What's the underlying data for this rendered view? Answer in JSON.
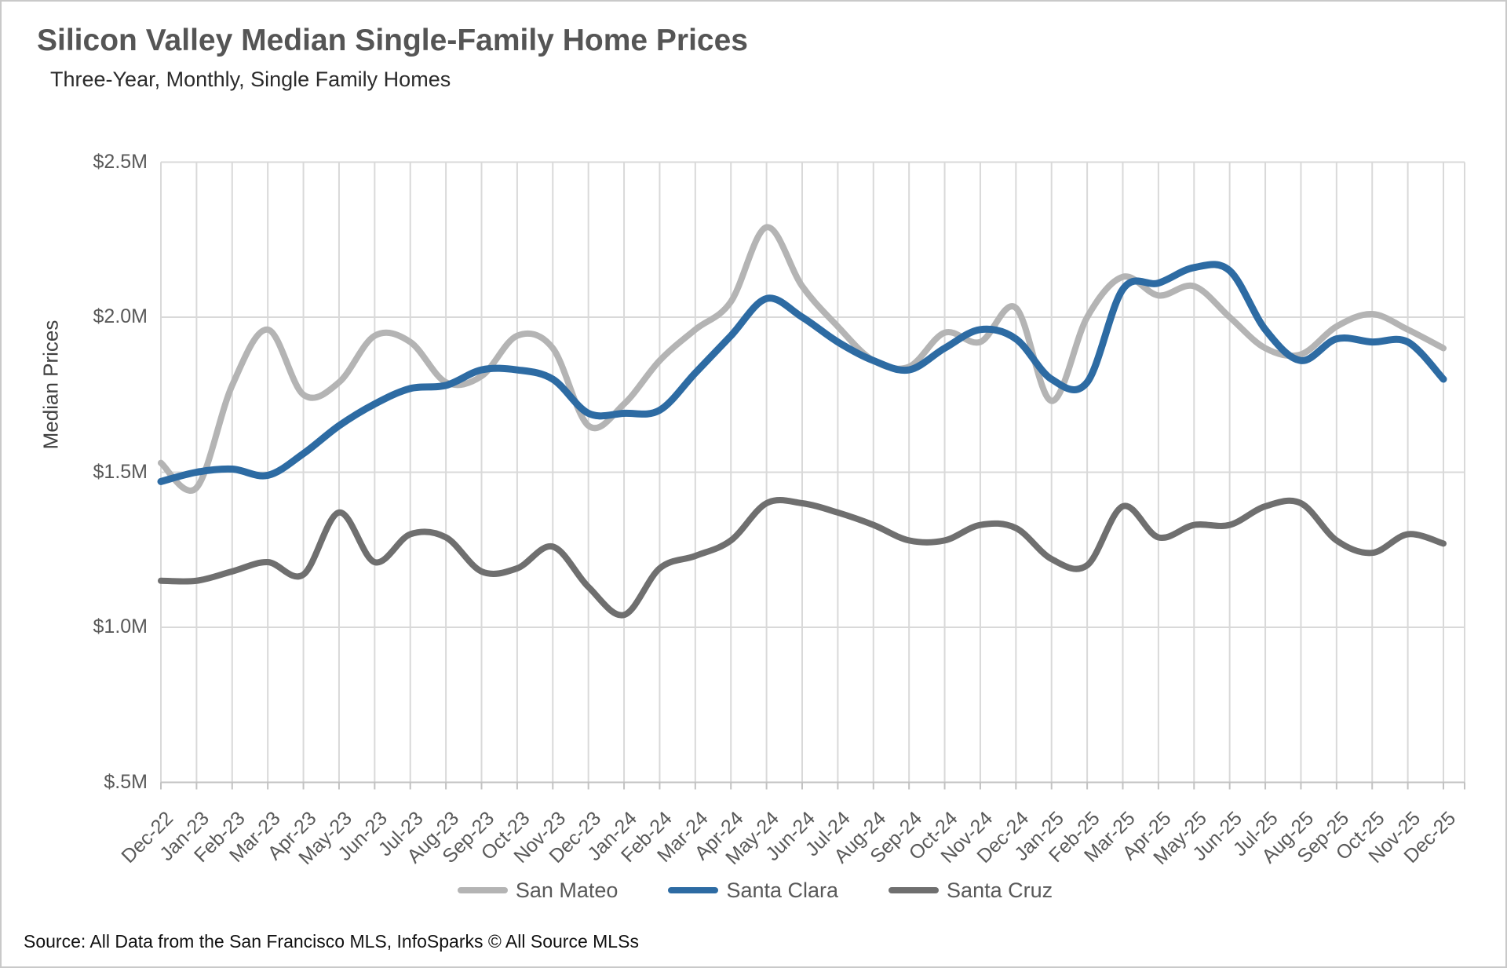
{
  "header": {
    "title": "Silicon Valley Median Single-Family Home Prices",
    "subtitle": "Three-Year, Monthly, Single Family Homes"
  },
  "chart_data": {
    "type": "line",
    "title": "Silicon Valley Median Single-Family Home Prices",
    "subtitle": "Three-Year, Monthly, Single Family Homes",
    "xlabel": "",
    "ylabel": "Median Prices",
    "ylim": [
      0.5,
      2.5
    ],
    "y_ticks": [
      2.5,
      2.0,
      1.5,
      1.0,
      0.5
    ],
    "y_tick_labels": [
      "$2.5M",
      "$2.0M",
      "$1.5M",
      "$1.0M",
      "$.5M"
    ],
    "grid": true,
    "legend_position": "bottom",
    "units": "millions USD",
    "categories": [
      "Dec-22",
      "Jan-23",
      "Feb-23",
      "Mar-23",
      "Apr-23",
      "May-23",
      "Jun-23",
      "Jul-23",
      "Aug-23",
      "Sep-23",
      "Oct-23",
      "Nov-23",
      "Dec-23",
      "Jan-24",
      "Feb-24",
      "Mar-24",
      "Apr-24",
      "May-24",
      "Jun-24",
      "Jul-24",
      "Aug-24",
      "Sep-24",
      "Oct-24",
      "Nov-24",
      "Dec-24",
      "Jan-25",
      "Feb-25",
      "Mar-25",
      "Apr-25",
      "May-25",
      "Jun-25",
      "Jul-25",
      "Aug-25",
      "Sep-25",
      "Oct-25",
      "Nov-25",
      "Dec-25"
    ],
    "series": [
      {
        "name": "San Mateo",
        "color": "#b4b4b4",
        "values": [
          1.53,
          1.45,
          1.78,
          1.96,
          1.75,
          1.79,
          1.94,
          1.92,
          1.79,
          1.81,
          1.94,
          1.9,
          1.65,
          1.72,
          1.86,
          1.96,
          2.05,
          2.29,
          2.1,
          1.97,
          1.86,
          1.84,
          1.95,
          1.92,
          2.03,
          1.73,
          2.0,
          2.13,
          2.07,
          2.1,
          2.0,
          1.9,
          1.88,
          1.97,
          2.01,
          1.96,
          1.9
        ]
      },
      {
        "name": "Santa Clara",
        "color": "#2d6ba3",
        "values": [
          1.47,
          1.5,
          1.51,
          1.49,
          1.56,
          1.65,
          1.72,
          1.77,
          1.78,
          1.83,
          1.83,
          1.8,
          1.69,
          1.69,
          1.7,
          1.82,
          1.94,
          2.06,
          2.0,
          1.92,
          1.86,
          1.83,
          1.9,
          1.96,
          1.93,
          1.8,
          1.79,
          2.09,
          2.11,
          2.16,
          2.15,
          1.96,
          1.86,
          1.93,
          1.92,
          1.92,
          1.8
        ]
      },
      {
        "name": "Santa Cruz",
        "color": "#6f6f6f",
        "values": [
          1.15,
          1.15,
          1.18,
          1.21,
          1.17,
          1.37,
          1.21,
          1.3,
          1.29,
          1.18,
          1.19,
          1.26,
          1.13,
          1.04,
          1.19,
          1.23,
          1.28,
          1.4,
          1.4,
          1.37,
          1.33,
          1.28,
          1.28,
          1.33,
          1.32,
          1.22,
          1.2,
          1.39,
          1.29,
          1.33,
          1.33,
          1.39,
          1.4,
          1.28,
          1.24,
          1.3,
          1.27
        ]
      }
    ]
  },
  "colors": {
    "gridline": "#d9d9d9",
    "axis_line": "#c2c2c2",
    "title_text": "#555555",
    "tick_text": "#595959"
  },
  "source": {
    "text": "Source: All Data from the San Francisco MLS, InfoSparks © All Source MLSs"
  }
}
